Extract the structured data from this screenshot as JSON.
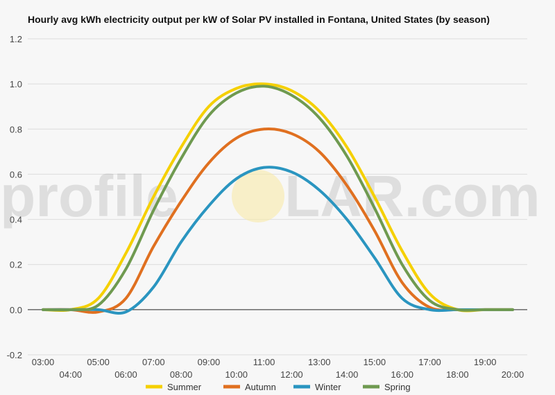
{
  "chart_data": {
    "type": "line",
    "title": "Hourly avg kWh electricity output per kW of Solar PV installed in Fontana, United States (by season)",
    "x": [
      "03:00",
      "04:00",
      "05:00",
      "06:00",
      "07:00",
      "08:00",
      "09:00",
      "10:00",
      "11:00",
      "12:00",
      "13:00",
      "14:00",
      "15:00",
      "16:00",
      "17:00",
      "18:00",
      "19:00",
      "20:00"
    ],
    "ylim": [
      -0.2,
      1.2
    ],
    "yticks": [
      "-0.2",
      "0.0",
      "0.2",
      "0.4",
      "0.6",
      "0.8",
      "1.0",
      "1.2"
    ],
    "grid": true,
    "legend": "bottom",
    "series": [
      {
        "name": "Summer",
        "color": "#f5d000",
        "values": [
          0,
          0,
          0.05,
          0.25,
          0.5,
          0.72,
          0.9,
          0.98,
          1.0,
          0.97,
          0.88,
          0.72,
          0.5,
          0.26,
          0.07,
          0,
          0,
          0
        ]
      },
      {
        "name": "Autumn",
        "color": "#e07020",
        "values": [
          0,
          0,
          -0.01,
          0.05,
          0.28,
          0.48,
          0.65,
          0.76,
          0.8,
          0.78,
          0.7,
          0.55,
          0.35,
          0.12,
          0.01,
          0,
          0,
          0
        ]
      },
      {
        "name": "Winter",
        "color": "#2a95c0",
        "values": [
          0,
          0,
          0,
          -0.01,
          0.1,
          0.3,
          0.46,
          0.58,
          0.63,
          0.61,
          0.53,
          0.4,
          0.23,
          0.05,
          0,
          0,
          0,
          0
        ]
      },
      {
        "name": "Spring",
        "color": "#6f9a50",
        "values": [
          0,
          0,
          0.02,
          0.18,
          0.44,
          0.67,
          0.86,
          0.96,
          0.99,
          0.95,
          0.85,
          0.68,
          0.45,
          0.2,
          0.04,
          0,
          0,
          0
        ]
      }
    ]
  },
  "watermark": {
    "left": "profile",
    "right": "LAR.com"
  }
}
